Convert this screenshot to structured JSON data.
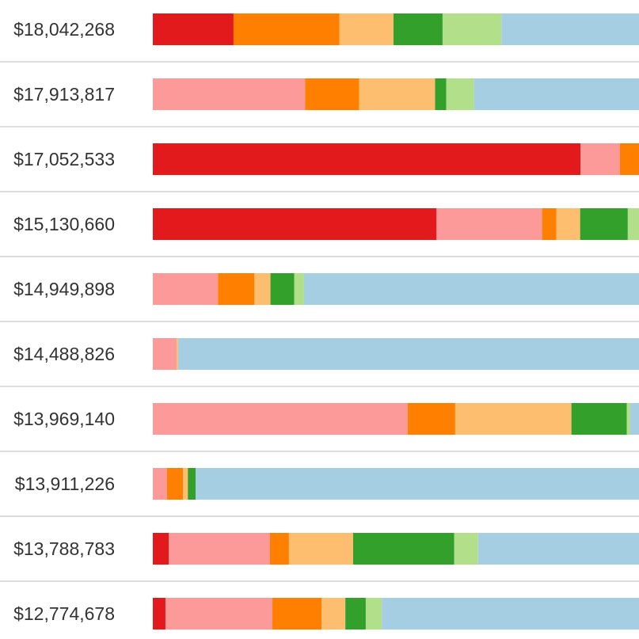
{
  "chart_data": {
    "type": "bar",
    "orientation": "horizontal",
    "stacking": "normalized",
    "title": "",
    "xlabel": "",
    "ylabel": "",
    "value_unit": "percent of total",
    "categories": [
      "$18,042,268",
      "$17,913,817",
      "$17,052,533",
      "$15,130,660",
      "$14,949,898",
      "$14,488,826",
      "$13,969,140",
      "$13,911,226",
      "$13,788,783",
      "$12,774,678"
    ],
    "series": [
      {
        "name": "red",
        "color": "#e31a1c",
        "values": [
          16.6,
          0,
          87.6,
          58.3,
          0,
          0,
          0,
          0,
          3.3,
          2.6
        ]
      },
      {
        "name": "pink",
        "color": "#fb9a99",
        "values": [
          0,
          31.3,
          8.1,
          21.7,
          13.4,
          4.9,
          52.4,
          2.9,
          20.8,
          22.0
        ]
      },
      {
        "name": "orange",
        "color": "#ff7f00",
        "values": [
          21.8,
          11.1,
          3.9,
          2.9,
          7.5,
          0,
          9.8,
          3.3,
          3.9,
          10.1
        ]
      },
      {
        "name": "light-orange",
        "color": "#fdbf6f",
        "values": [
          11.1,
          15.6,
          0,
          4.9,
          3.3,
          0.3,
          23.9,
          1.0,
          13.2,
          4.9
        ]
      },
      {
        "name": "green",
        "color": "#33a02c",
        "values": [
          10.1,
          2.3,
          0,
          9.8,
          4.9,
          0,
          11.4,
          1.6,
          20.8,
          4.2
        ]
      },
      {
        "name": "light-green",
        "color": "#b2df8a",
        "values": [
          12.1,
          5.7,
          0,
          2.3,
          2.0,
          0,
          0.7,
          0,
          4.9,
          3.3
        ]
      },
      {
        "name": "light-blue",
        "color": "#a6cee3",
        "values": [
          28.3,
          33.9,
          0,
          0,
          68.9,
          94.8,
          1.8,
          91.2,
          33.1,
          52.9
        ]
      }
    ],
    "grid": false,
    "legend": "none"
  }
}
